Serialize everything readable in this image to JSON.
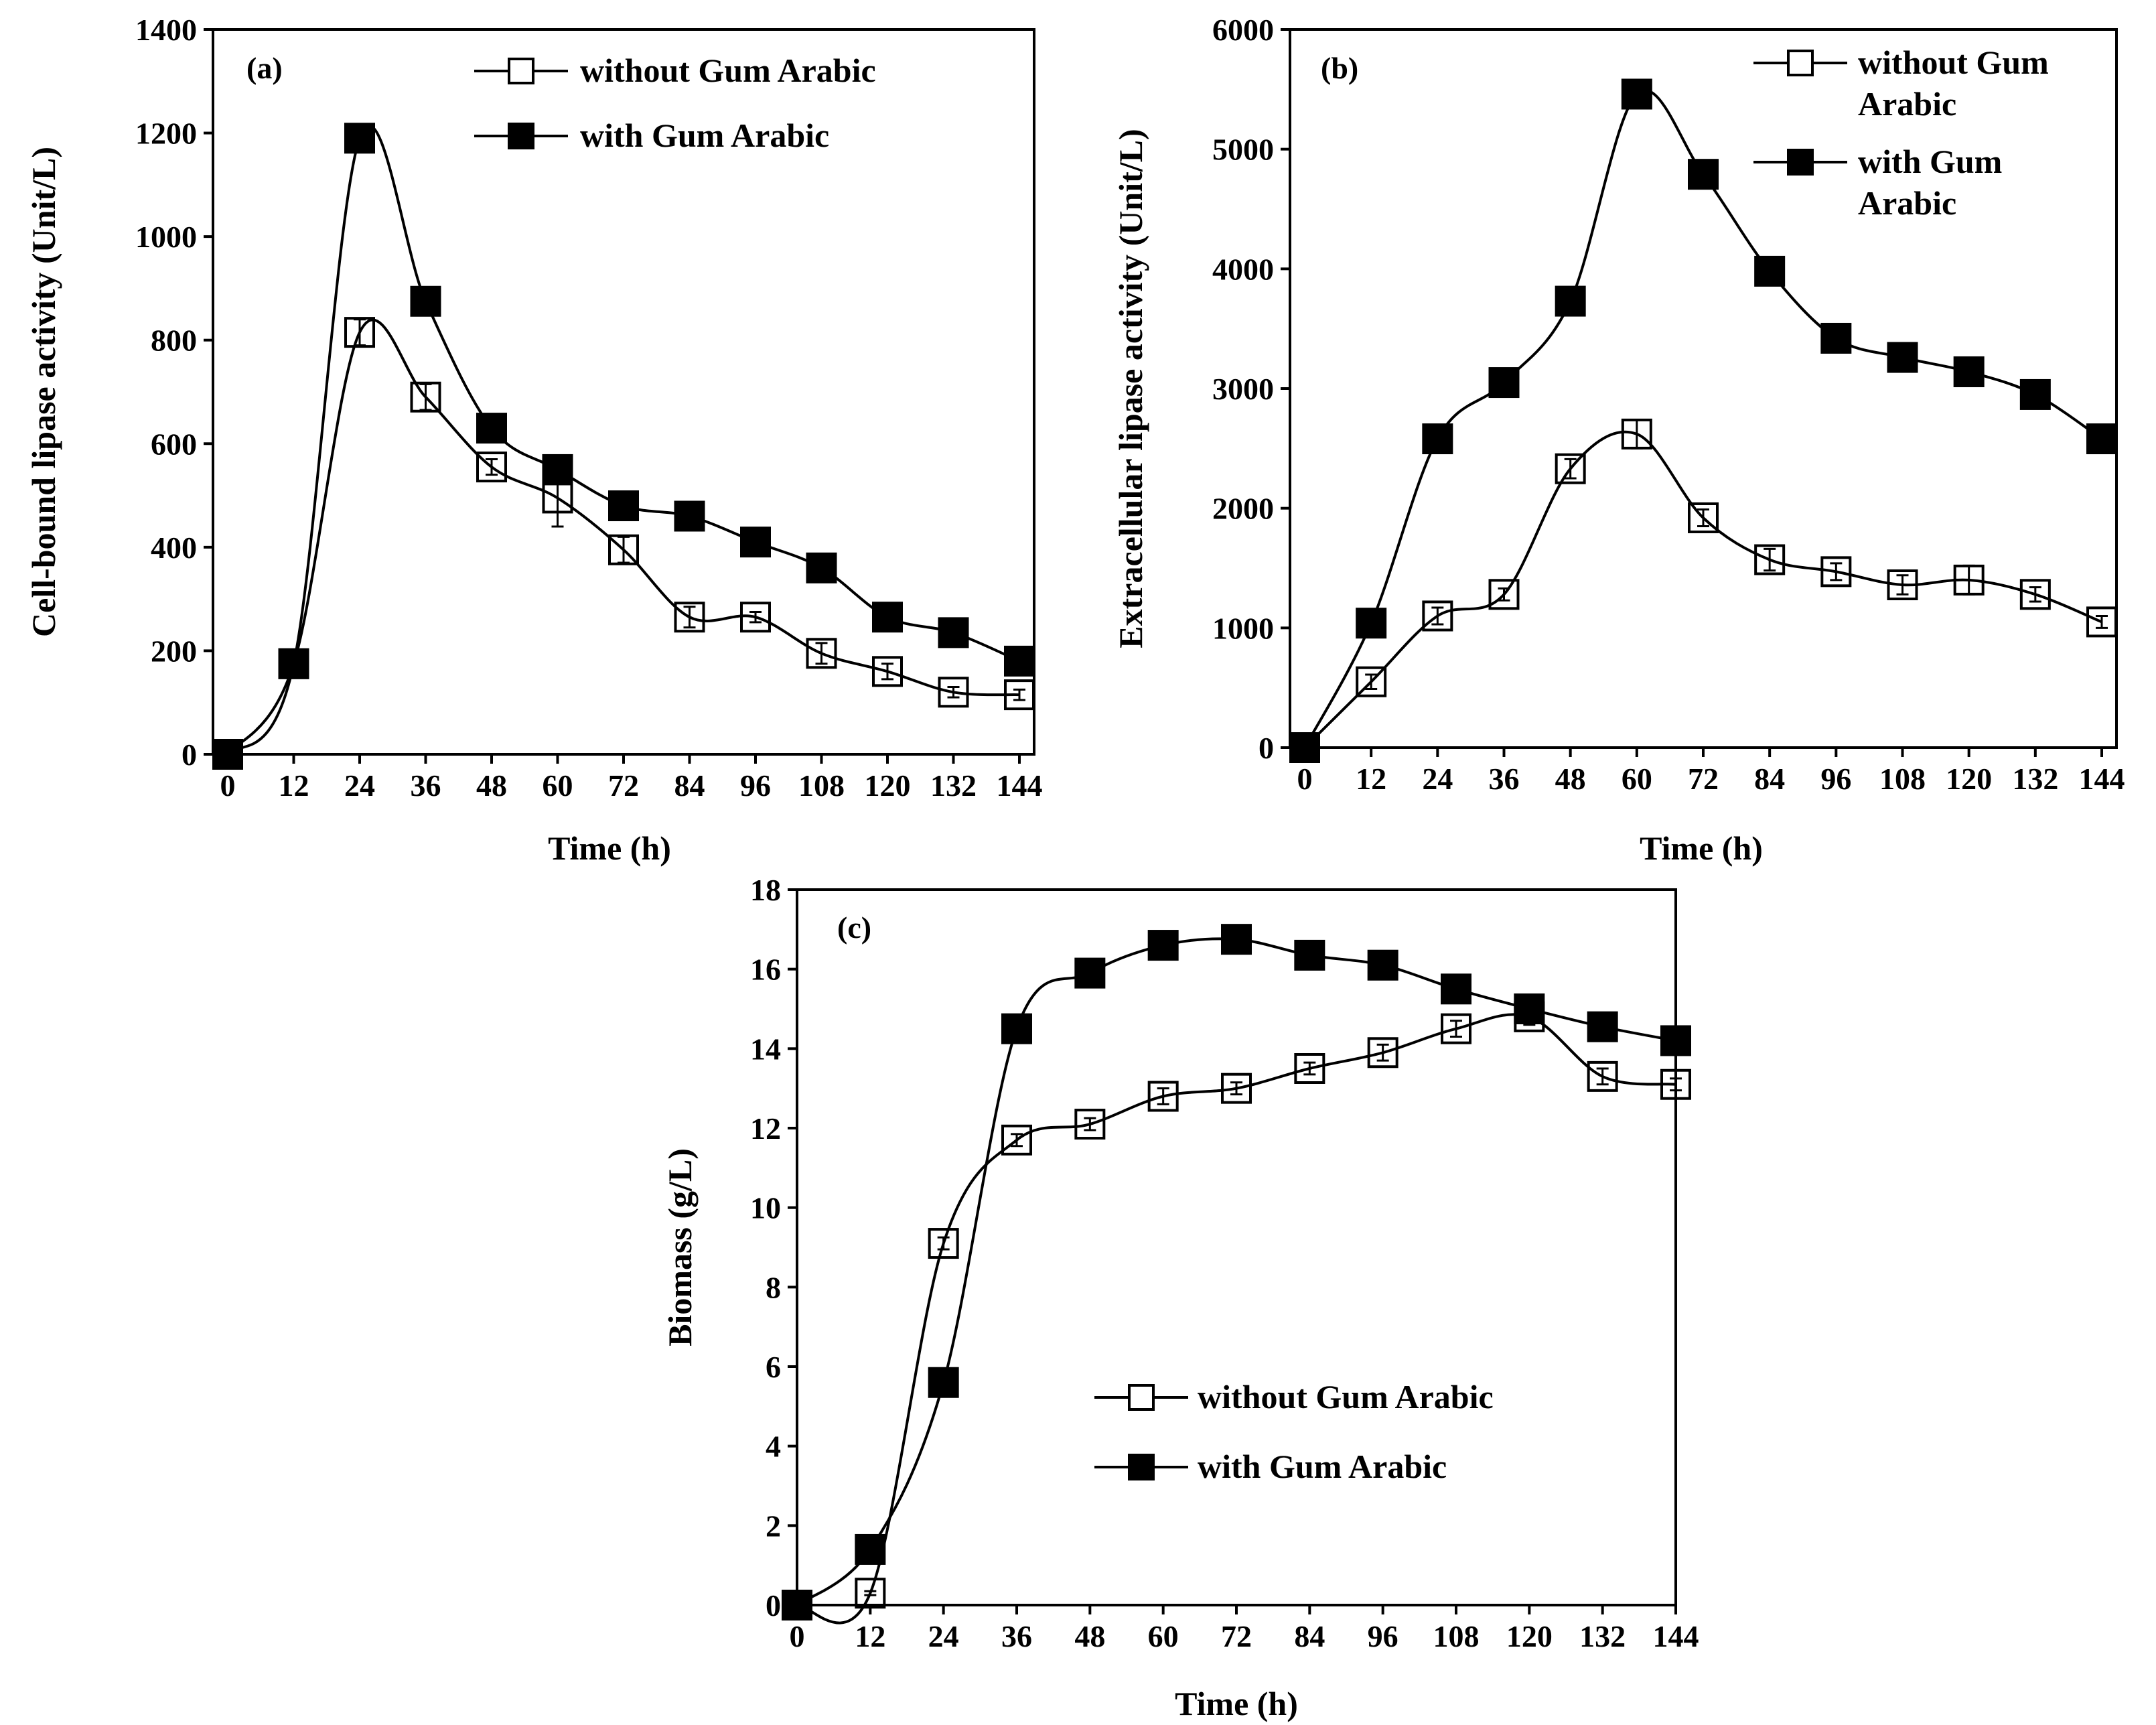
{
  "chart_data": [
    {
      "type": "line",
      "panel_label": "(a)",
      "title": "",
      "xlabel": "Time (h)",
      "ylabel": "Cell-bound lipase activity (Unit/L)",
      "xlim": [
        0,
        144
      ],
      "ylim": [
        0,
        1400
      ],
      "x": [
        0,
        12,
        24,
        36,
        48,
        60,
        72,
        84,
        96,
        108,
        120,
        132,
        144
      ],
      "x_ticks": [
        "0",
        "12",
        "24",
        "36",
        "48",
        "60",
        "72",
        "84",
        "96",
        "108",
        "120",
        "132",
        "144"
      ],
      "y_ticks": [
        "0",
        "200",
        "400",
        "600",
        "800",
        "1000",
        "1200",
        "1400"
      ],
      "grid": false,
      "legend_position": "top-right",
      "series": [
        {
          "name": "without Gum Arabic",
          "legend_lines": [
            "without Gum Arabic"
          ],
          "marker": "open-square",
          "values": [
            0,
            175,
            815,
            690,
            555,
            495,
            395,
            265,
            265,
            195,
            160,
            120,
            115
          ],
          "errors": [
            0,
            5,
            25,
            25,
            15,
            55,
            25,
            20,
            10,
            20,
            15,
            10,
            10
          ]
        },
        {
          "name": "with Gum Arabic",
          "legend_lines": [
            "with Gum Arabic"
          ],
          "marker": "filled-square",
          "values": [
            0,
            175,
            1190,
            875,
            630,
            550,
            480,
            460,
            410,
            360,
            265,
            235,
            180
          ],
          "errors": [
            0,
            5,
            15,
            15,
            10,
            10,
            10,
            10,
            10,
            10,
            10,
            10,
            10
          ]
        }
      ]
    },
    {
      "type": "line",
      "panel_label": "(b)",
      "title": "",
      "xlabel": "Time (h)",
      "ylabel": "Extracellular lipase activity (Unit/L)",
      "xlim": [
        0,
        144
      ],
      "ylim": [
        0,
        6000
      ],
      "x": [
        0,
        12,
        24,
        36,
        48,
        60,
        72,
        84,
        96,
        108,
        120,
        132,
        144
      ],
      "x_ticks": [
        "0",
        "12",
        "24",
        "36",
        "48",
        "60",
        "72",
        "84",
        "96",
        "108",
        "120",
        "132",
        "144"
      ],
      "y_ticks": [
        "0",
        "1000",
        "2000",
        "3000",
        "4000",
        "5000",
        "6000"
      ],
      "grid": false,
      "legend_position": "top-right",
      "series": [
        {
          "name": "without Gum Arabic",
          "legend_lines": [
            "without Gum",
            "Arabic"
          ],
          "marker": "open-square",
          "values": [
            0,
            550,
            1100,
            1280,
            2330,
            2620,
            1920,
            1570,
            1470,
            1360,
            1400,
            1280,
            1050
          ],
          "errors": [
            0,
            60,
            70,
            50,
            80,
            120,
            70,
            90,
            70,
            80,
            120,
            60,
            50
          ]
        },
        {
          "name": "with Gum Arabic",
          "legend_lines": [
            "with Gum",
            "Arabic"
          ],
          "marker": "filled-square",
          "values": [
            0,
            1040,
            2580,
            3050,
            3730,
            5460,
            4790,
            3980,
            3420,
            3260,
            3140,
            2950,
            2580
          ],
          "errors": [
            0,
            40,
            40,
            40,
            80,
            40,
            40,
            40,
            40,
            40,
            40,
            40,
            40
          ]
        }
      ]
    },
    {
      "type": "line",
      "panel_label": "(c)",
      "title": "",
      "xlabel": "Time (h)",
      "ylabel": "Biomass (g/L)",
      "xlim": [
        0,
        144
      ],
      "ylim": [
        0,
        18
      ],
      "x": [
        0,
        12,
        24,
        36,
        48,
        60,
        72,
        84,
        96,
        108,
        120,
        132,
        144
      ],
      "x_ticks": [
        "0",
        "12",
        "24",
        "36",
        "48",
        "60",
        "72",
        "84",
        "96",
        "108",
        "120",
        "132",
        "144"
      ],
      "y_ticks": [
        "0",
        "2",
        "4",
        "6",
        "8",
        "10",
        "12",
        "14",
        "16",
        "18"
      ],
      "grid": false,
      "legend_position": "bottom-center",
      "series": [
        {
          "name": "without Gum Arabic",
          "legend_lines": [
            "without Gum Arabic"
          ],
          "marker": "open-square",
          "values": [
            0,
            0.3,
            9.1,
            11.7,
            12.1,
            12.8,
            13.0,
            13.5,
            13.9,
            14.5,
            14.8,
            13.3,
            13.1
          ],
          "errors": [
            0,
            0.05,
            0.15,
            0.15,
            0.15,
            0.2,
            0.15,
            0.15,
            0.2,
            0.2,
            0.2,
            0.2,
            0.15
          ]
        },
        {
          "name": "with Gum Arabic",
          "legend_lines": [
            "with Gum Arabic"
          ],
          "marker": "filled-square",
          "values": [
            0,
            1.4,
            5.6,
            14.5,
            15.9,
            16.6,
            16.75,
            16.35,
            16.1,
            15.5,
            15.0,
            14.55,
            14.2
          ],
          "errors": [
            0,
            0.05,
            0.1,
            0.1,
            0.1,
            0.1,
            0.1,
            0.1,
            0.1,
            0.1,
            0.1,
            0.1,
            0.1
          ]
        }
      ]
    }
  ]
}
